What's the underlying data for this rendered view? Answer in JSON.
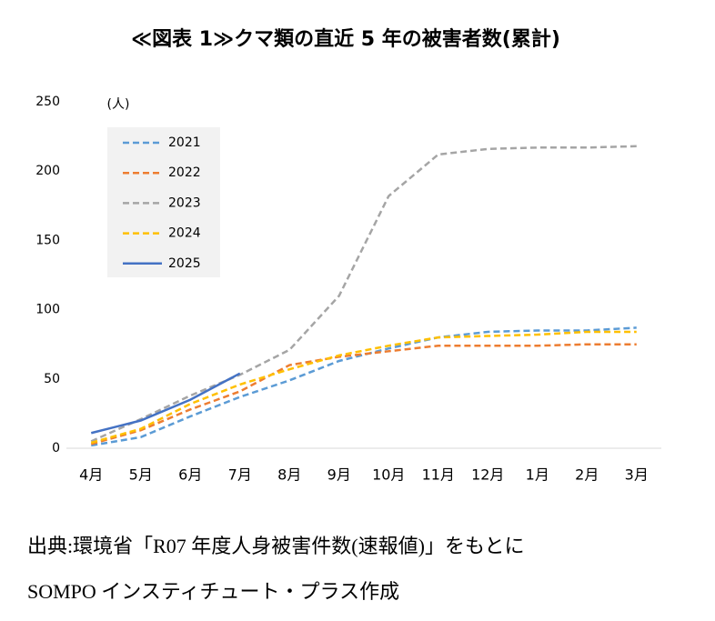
{
  "chart_data": {
    "type": "line",
    "title": "≪図表 1≫クマ類の直近 5 年の被害者数(累計)",
    "y_unit": "(人)",
    "categories": [
      "4月",
      "5月",
      "6月",
      "7月",
      "8月",
      "9月",
      "10月",
      "11月",
      "12月",
      "1月",
      "2月",
      "3月"
    ],
    "series": [
      {
        "name": "2021",
        "color": "#5b9bd5",
        "dashed": true,
        "values": [
          2,
          8,
          23,
          37,
          49,
          63,
          72,
          80,
          84,
          85,
          85,
          87
        ]
      },
      {
        "name": "2022",
        "color": "#ed7d31",
        "dashed": true,
        "values": [
          3,
          13,
          28,
          41,
          60,
          66,
          70,
          74,
          74,
          74,
          75,
          75
        ]
      },
      {
        "name": "2023",
        "color": "#a5a5a5",
        "dashed": true,
        "values": [
          5,
          21,
          38,
          53,
          71,
          110,
          182,
          212,
          216,
          217,
          217,
          218
        ]
      },
      {
        "name": "2024",
        "color": "#ffc000",
        "dashed": true,
        "values": [
          4,
          14,
          32,
          46,
          57,
          67,
          74,
          80,
          81,
          82,
          84,
          84
        ]
      },
      {
        "name": "2025",
        "color": "#4472c4",
        "dashed": false,
        "values": [
          11,
          20,
          35,
          54,
          null,
          null,
          null,
          null,
          null,
          null,
          null,
          null
        ]
      }
    ],
    "ylim": [
      0,
      250
    ],
    "yticks": [
      0,
      50,
      100,
      150,
      200,
      250
    ],
    "source": [
      "出典:環境省「R07 年度人身被害件数(速報値)」をもとに",
      "SOMPO インスティチュート・プラス作成"
    ]
  }
}
